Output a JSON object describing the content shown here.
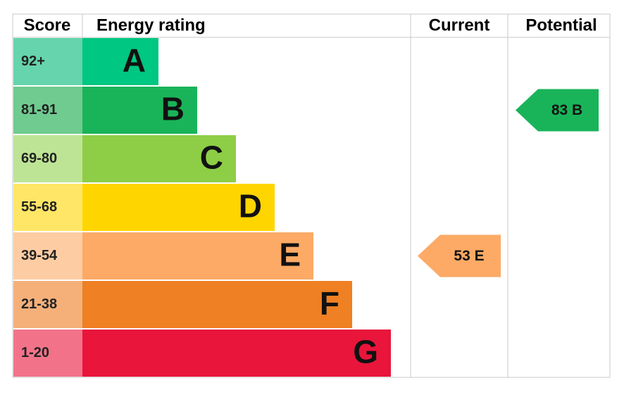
{
  "header": {
    "score": "Score",
    "energy_rating": "Energy rating",
    "current": "Current",
    "potential": "Potential"
  },
  "bands": [
    {
      "score": "92+",
      "letter": "A",
      "color": "#00c781",
      "score_color": "#66d4ac"
    },
    {
      "score": "81-91",
      "letter": "B",
      "color": "#19b459",
      "score_color": "#6fcb8f"
    },
    {
      "score": "69-80",
      "letter": "C",
      "color": "#8dce46",
      "score_color": "#bde495"
    },
    {
      "score": "55-68",
      "letter": "D",
      "color": "#ffd500",
      "score_color": "#ffe666"
    },
    {
      "score": "39-54",
      "letter": "E",
      "color": "#fcaa65",
      "score_color": "#fdcca3"
    },
    {
      "score": "21-38",
      "letter": "F",
      "color": "#ef8023",
      "score_color": "#f5b07a"
    },
    {
      "score": "1-20",
      "letter": "G",
      "color": "#e9153b",
      "score_color": "#f27389"
    }
  ],
  "current": "53 E",
  "potential": "83 B"
}
